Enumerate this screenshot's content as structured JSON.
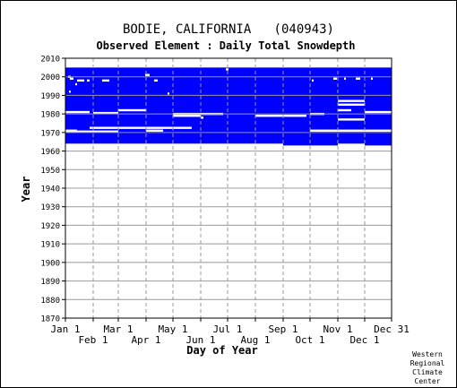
{
  "chart_data": {
    "type": "heatmap",
    "title": "BODIE, CALIFORNIA   (040943)",
    "subtitle": "Observed Element : Daily Total Snowdepth",
    "xlabel": "Day of Year",
    "ylabel": "Year",
    "xlim": [
      1,
      365
    ],
    "ylim": [
      1870,
      2010
    ],
    "x_ticks_upper": [
      {
        "label": "Jan 1",
        "day": 1
      },
      {
        "label": "Mar 1",
        "day": 60
      },
      {
        "label": "May 1",
        "day": 121
      },
      {
        "label": "Jul 1",
        "day": 182
      },
      {
        "label": "Sep 1",
        "day": 244
      },
      {
        "label": "Nov 1",
        "day": 305
      },
      {
        "label": "Dec 31",
        "day": 365
      }
    ],
    "x_ticks_lower": [
      {
        "label": "Feb 1",
        "day": 32
      },
      {
        "label": "Apr 1",
        "day": 91
      },
      {
        "label": "Jun 1",
        "day": 152
      },
      {
        "label": "Aug 1",
        "day": 213
      },
      {
        "label": "Oct 1",
        "day": 274
      },
      {
        "label": "Dec 1",
        "day": 335
      }
    ],
    "y_ticks": [
      1870,
      1880,
      1890,
      1900,
      1910,
      1920,
      1930,
      1940,
      1950,
      1960,
      1970,
      1980,
      1990,
      2000,
      2010
    ],
    "grid": true,
    "color": "#0000ff",
    "coverage": {
      "year_start": 1963,
      "year_end": 2005,
      "ragged_bottom_years": [
        {
          "day_start": 1,
          "day_end": 244,
          "year": 1964
        },
        {
          "day_start": 244,
          "day_end": 305,
          "year": 1963
        },
        {
          "day_start": 305,
          "day_end": 335,
          "year": 1964
        },
        {
          "day_start": 335,
          "day_end": 365,
          "year": 1963
        }
      ]
    },
    "missing_spans": [
      {
        "year": 1970.5,
        "day_start": 1,
        "day_end": 60
      },
      {
        "year": 1971,
        "day_start": 1,
        "day_end": 14
      },
      {
        "year": 1972.5,
        "day_start": 28,
        "day_end": 142
      },
      {
        "year": 1971,
        "day_start": 91,
        "day_end": 110
      },
      {
        "year": 1971,
        "day_start": 274,
        "day_end": 365
      },
      {
        "year": 1977,
        "day_start": 305,
        "day_end": 335
      },
      {
        "year": 1978,
        "day_start": 152,
        "day_end": 155
      },
      {
        "year": 1979,
        "day_start": 121,
        "day_end": 152
      },
      {
        "year": 1980,
        "day_start": 121,
        "day_end": 177
      },
      {
        "year": 1979,
        "day_start": 213,
        "day_end": 270
      },
      {
        "year": 1980,
        "day_start": 274,
        "day_end": 290
      },
      {
        "year": 1980.5,
        "day_start": 32,
        "day_end": 60
      },
      {
        "year": 1981,
        "day_start": 1,
        "day_end": 28
      },
      {
        "year": 1982,
        "day_start": 60,
        "day_end": 91
      },
      {
        "year": 1981,
        "day_start": 335,
        "day_end": 365
      },
      {
        "year": 1982,
        "day_start": 305,
        "day_end": 320
      },
      {
        "year": 1985,
        "day_start": 305,
        "day_end": 335
      },
      {
        "year": 1987,
        "day_start": 305,
        "day_end": 335
      },
      {
        "year": 1998,
        "day_start": 14,
        "day_end": 22
      },
      {
        "year": 1998,
        "day_start": 25,
        "day_end": 28
      },
      {
        "year": 1998,
        "day_start": 42,
        "day_end": 50
      },
      {
        "year": 1999,
        "day_start": 6,
        "day_end": 10
      },
      {
        "year": 2000,
        "day_start": 4,
        "day_end": 7
      },
      {
        "year": 2001,
        "day_start": 90,
        "day_end": 95
      },
      {
        "year": 1998,
        "day_start": 100,
        "day_end": 104
      },
      {
        "year": 1998,
        "day_start": 276,
        "day_end": 278
      },
      {
        "year": 1999,
        "day_start": 300,
        "day_end": 304
      },
      {
        "year": 1999,
        "day_start": 312,
        "day_end": 314
      },
      {
        "year": 1999,
        "day_start": 325,
        "day_end": 330
      },
      {
        "year": 1999,
        "day_start": 342,
        "day_end": 344
      },
      {
        "year": 2004,
        "day_start": 180,
        "day_end": 183
      },
      {
        "year": 1991,
        "day_start": 115,
        "day_end": 117
      },
      {
        "year": 1996,
        "day_start": 12,
        "day_end": 14
      },
      {
        "year": 1992,
        "day_start": 5,
        "day_end": 7
      }
    ]
  },
  "credit": [
    "Western",
    "Regional",
    "Climate",
    "Center"
  ]
}
